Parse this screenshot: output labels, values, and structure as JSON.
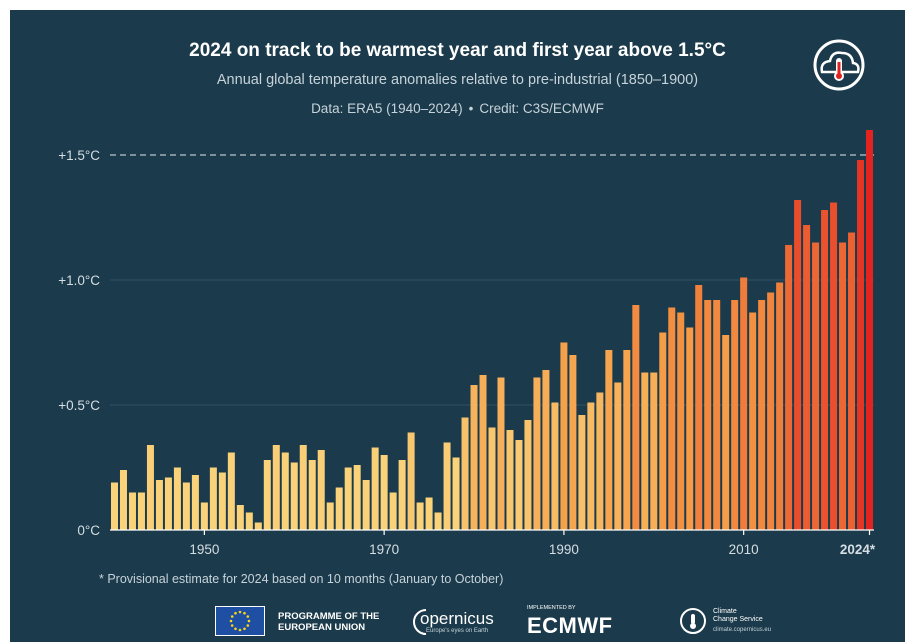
{
  "header": {
    "title": "2024 on track to be warmest year and first year above 1.5°C",
    "subtitle": "Annual global temperature anomalies relative to pre-industrial (1850–1900)",
    "data_source": "Data: ERA5 (1940–2024)",
    "separator": "•",
    "credit": "Credit: C3S/ECMWF"
  },
  "footnote": "* Provisional estimate for 2024 based on 10 months (January to October)",
  "logos": {
    "eu_line1": "PROGRAMME OF THE",
    "eu_line2": "EUROPEAN UNION",
    "copernicus": "opernicus",
    "copernicus_tagline": "Europe's eyes on Earth",
    "implemented_by": "IMPLEMENTED BY",
    "ecmwf": "ECMWF",
    "c3s_line1": "Climate",
    "c3s_line2": "Change Service",
    "c3s_url": "climate.copernicus.eu",
    "icon_names": [
      "eu-flag-icon",
      "copernicus-logo",
      "ecmwf-logo",
      "c3s-logo",
      "thermometer-cloud-icon"
    ]
  },
  "colors": {
    "background": "#1b3a4b",
    "bar_low": "#f9d27a",
    "bar_mid": "#f59b45",
    "bar_high": "#e2231f",
    "threshold_line": "#b9c6ce",
    "axis_text": "#d6dee3"
  },
  "chart_data": {
    "type": "bar",
    "x": [
      1940,
      1941,
      1942,
      1943,
      1944,
      1945,
      1946,
      1947,
      1948,
      1949,
      1950,
      1951,
      1952,
      1953,
      1954,
      1955,
      1956,
      1957,
      1958,
      1959,
      1960,
      1961,
      1962,
      1963,
      1964,
      1965,
      1966,
      1967,
      1968,
      1969,
      1970,
      1971,
      1972,
      1973,
      1974,
      1975,
      1976,
      1977,
      1978,
      1979,
      1980,
      1981,
      1982,
      1983,
      1984,
      1985,
      1986,
      1987,
      1988,
      1989,
      1990,
      1991,
      1992,
      1993,
      1994,
      1995,
      1996,
      1997,
      1998,
      1999,
      2000,
      2001,
      2002,
      2003,
      2004,
      2005,
      2006,
      2007,
      2008,
      2009,
      2010,
      2011,
      2012,
      2013,
      2014,
      2015,
      2016,
      2017,
      2018,
      2019,
      2020,
      2021,
      2022,
      2023,
      2024
    ],
    "values": [
      0.19,
      0.24,
      0.15,
      0.15,
      0.34,
      0.2,
      0.21,
      0.25,
      0.19,
      0.22,
      0.11,
      0.25,
      0.23,
      0.31,
      0.1,
      0.07,
      0.03,
      0.28,
      0.34,
      0.31,
      0.27,
      0.34,
      0.28,
      0.32,
      0.11,
      0.17,
      0.25,
      0.26,
      0.2,
      0.33,
      0.3,
      0.15,
      0.28,
      0.39,
      0.11,
      0.13,
      0.07,
      0.35,
      0.29,
      0.45,
      0.58,
      0.62,
      0.41,
      0.61,
      0.4,
      0.36,
      0.44,
      0.61,
      0.64,
      0.51,
      0.75,
      0.7,
      0.46,
      0.51,
      0.55,
      0.72,
      0.59,
      0.72,
      0.9,
      0.63,
      0.63,
      0.79,
      0.89,
      0.87,
      0.81,
      0.98,
      0.92,
      0.92,
      0.78,
      0.92,
      1.01,
      0.87,
      0.92,
      0.95,
      0.99,
      1.14,
      1.32,
      1.22,
      1.15,
      1.28,
      1.31,
      1.15,
      1.19,
      1.48,
      1.6
    ],
    "x_ticks": [
      {
        "year": 1950,
        "label": "1950"
      },
      {
        "year": 1970,
        "label": "1970"
      },
      {
        "year": 1990,
        "label": "1990"
      },
      {
        "year": 2010,
        "label": "2010"
      },
      {
        "year": 2024,
        "label": "2024*"
      }
    ],
    "y_ticks": [
      {
        "value": 0,
        "label": "0°C"
      },
      {
        "value": 0.5,
        "label": "+0.5°C"
      },
      {
        "value": 1.0,
        "label": "+1.0°C"
      },
      {
        "value": 1.5,
        "label": "+1.5°C"
      }
    ],
    "ylim": [
      0,
      1.6
    ],
    "threshold": 1.5,
    "grid": true,
    "title": "2024 on track to be warmest year and first year above 1.5°C",
    "xlabel": "",
    "ylabel": ""
  }
}
